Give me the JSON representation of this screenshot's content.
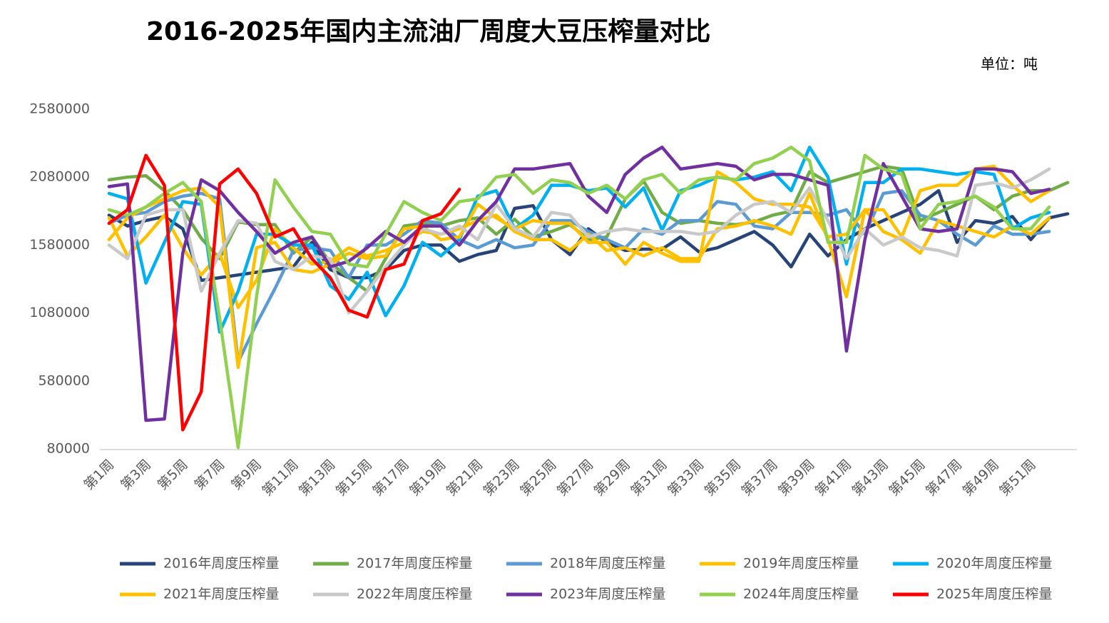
{
  "chart_data": {
    "type": "line",
    "title": "2016-2025年国内主流油厂周度大豆压榨量对比",
    "unit_note": "单位：吨",
    "categories": [
      "第1周",
      null,
      "第3周",
      null,
      "第5周",
      null,
      "第7周",
      null,
      "第9周",
      null,
      "第11周",
      null,
      "第13周",
      null,
      "第15周",
      null,
      "第17周",
      null,
      "第19周",
      null,
      "第21周",
      null,
      "第23周",
      null,
      "第25周",
      null,
      "第27周",
      null,
      "第29周",
      null,
      "第31周",
      null,
      "第33周",
      null,
      "第35周",
      null,
      "第37周",
      null,
      "第39周",
      null,
      "第41周",
      null,
      "第43周",
      null,
      "第45周",
      null,
      "第47周",
      null,
      "第49周",
      null,
      "第51周",
      null,
      null
    ],
    "ylim": [
      80000,
      2580000
    ],
    "yticks": [
      80000,
      580000,
      1080000,
      1580000,
      2080000,
      2580000
    ],
    "grid": false,
    "legend": "bottom",
    "series": [
      {
        "name": "2016年周度压榨量",
        "color": "#264478",
        "values": [
          1800000,
          1720000,
          1760000,
          1790000,
          1700000,
          1320000,
          1340000,
          1360000,
          1380000,
          1400000,
          1420000,
          1600000,
          1400000,
          1340000,
          1340000,
          1400000,
          1540000,
          1580000,
          1580000,
          1460000,
          1510000,
          1540000,
          1850000,
          1870000,
          1620000,
          1510000,
          1700000,
          1600000,
          1540000,
          1550000,
          1550000,
          1640000,
          1530000,
          1560000,
          1620000,
          1680000,
          1580000,
          1420000,
          1660000,
          1500000,
          1620000,
          1700000,
          1760000,
          1820000,
          1880000,
          1980000,
          1600000,
          1760000,
          1740000,
          1790000,
          1620000,
          1780000,
          1810000
        ]
      },
      {
        "name": "2017年周度压榨量",
        "color": "#70ad47",
        "values": [
          2060000,
          2080000,
          2090000,
          1980000,
          1840000,
          1630000,
          1480000,
          1750000,
          1730000,
          1730000,
          1520000,
          1640000,
          1450000,
          1340000,
          1240000,
          1480000,
          1720000,
          1740000,
          1720000,
          1760000,
          1780000,
          1660000,
          1770000,
          1640000,
          1680000,
          1730000,
          1620000,
          1640000,
          1920000,
          2050000,
          1820000,
          1740000,
          1760000,
          1740000,
          1730000,
          1750000,
          1800000,
          1830000,
          2120000,
          2040000,
          2080000,
          2120000,
          2160000,
          2140000,
          1760000,
          1820000,
          1880000,
          1940000,
          1840000,
          1940000,
          1980000,
          1980000,
          2040000
        ]
      },
      {
        "name": "2018年周度压榨量",
        "color": "#5b9bd5",
        "values": [
          1740000,
          1800000,
          1820000,
          1900000,
          1940000,
          1960000,
          1920000,
          720000,
          1000000,
          1260000,
          1540000,
          1560000,
          1540000,
          1340000,
          1580000,
          1580000,
          1660000,
          1760000,
          1740000,
          1620000,
          1560000,
          1620000,
          1560000,
          1580000,
          1760000,
          1760000,
          1680000,
          1620000,
          1560000,
          1700000,
          1660000,
          1760000,
          1760000,
          1900000,
          1880000,
          1720000,
          1700000,
          1820000,
          1820000,
          1800000,
          1840000,
          1660000,
          1960000,
          1980000,
          1800000,
          1760000,
          1660000,
          1580000,
          1720000,
          1660000,
          1660000,
          1680000,
          null
        ]
      },
      {
        "name": "2019年周度压榨量",
        "color": "#ffc000",
        "values": [
          1780000,
          1500000,
          1640000,
          1800000,
          1560000,
          1360000,
          1520000,
          1120000,
          1320000,
          1700000,
          1560000,
          1440000,
          1460000,
          1560000,
          1500000,
          1540000,
          1600000,
          1680000,
          1660000,
          1700000,
          1760000,
          1800000,
          1680000,
          1620000,
          1620000,
          1540000,
          1660000,
          1540000,
          1560000,
          1500000,
          1560000,
          1480000,
          1480000,
          1700000,
          1720000,
          1760000,
          1720000,
          1660000,
          1960000,
          1620000,
          1200000,
          1840000,
          1680000,
          1620000,
          1520000,
          1760000,
          1720000,
          1680000,
          1640000,
          1720000,
          1660000,
          1780000,
          null
        ]
      },
      {
        "name": "2020年周度压榨量",
        "color": "#00b0f0",
        "values": [
          1960000,
          1920000,
          1300000,
          1600000,
          1900000,
          1880000,
          940000,
          1240000,
          1660000,
          1660000,
          1580000,
          1580000,
          1280000,
          1180000,
          1380000,
          1060000,
          1280000,
          1600000,
          1500000,
          1620000,
          1940000,
          1980000,
          1700000,
          1800000,
          2020000,
          2020000,
          1980000,
          2000000,
          1860000,
          2000000,
          1690000,
          1980000,
          2020000,
          2080000,
          2060000,
          2080000,
          2120000,
          1980000,
          2300000,
          2080000,
          1440000,
          2040000,
          2040000,
          2140000,
          2140000,
          2120000,
          2100000,
          2120000,
          2100000,
          1700000,
          1780000,
          1820000,
          null
        ]
      },
      {
        "name": "2021年周度压榨量",
        "color": "#ffc000",
        "values": [
          1620000,
          1780000,
          1860000,
          1920000,
          1980000,
          2000000,
          1860000,
          680000,
          1560000,
          1600000,
          1400000,
          1380000,
          1440000,
          1520000,
          1480000,
          1500000,
          1700000,
          1720000,
          1620000,
          1640000,
          1880000,
          1780000,
          1700000,
          1760000,
          1740000,
          1740000,
          1600000,
          1600000,
          1440000,
          1600000,
          1520000,
          1460000,
          1460000,
          2120000,
          2040000,
          1920000,
          1880000,
          1880000,
          1860000,
          1640000,
          1660000,
          1840000,
          1840000,
          1640000,
          1980000,
          2020000,
          2020000,
          2140000,
          2160000,
          2020000,
          1900000,
          1980000,
          null
        ]
      },
      {
        "name": "2022年周度压榨量",
        "color": "#c9c9c9",
        "values": [
          1580000,
          1480000,
          1800000,
          1840000,
          1840000,
          1240000,
          1520000,
          1760000,
          1740000,
          1460000,
          1400000,
          1500000,
          1480000,
          1080000,
          1240000,
          1420000,
          1580000,
          1700000,
          1660000,
          1720000,
          1620000,
          1880000,
          1700000,
          1640000,
          1820000,
          1800000,
          1640000,
          1680000,
          1700000,
          1680000,
          1680000,
          1680000,
          1660000,
          1680000,
          1800000,
          1880000,
          1900000,
          1820000,
          2000000,
          1760000,
          1480000,
          1700000,
          1580000,
          1640000,
          1560000,
          1540000,
          1500000,
          2020000,
          2040000,
          2000000,
          2060000,
          2140000,
          null
        ]
      },
      {
        "name": "2023年周度压榨量",
        "color": "#7030a0",
        "values": [
          2010000,
          2030000,
          290000,
          300000,
          1520000,
          2060000,
          1980000,
          1820000,
          1680000,
          1520000,
          1600000,
          1640000,
          1420000,
          1460000,
          1560000,
          1680000,
          1600000,
          1720000,
          1720000,
          1580000,
          1760000,
          1900000,
          2140000,
          2140000,
          2160000,
          2180000,
          1940000,
          1820000,
          2100000,
          2220000,
          2300000,
          2140000,
          2160000,
          2180000,
          2160000,
          2060000,
          2100000,
          2100000,
          2060000,
          2020000,
          800000,
          1620000,
          2180000,
          1940000,
          1700000,
          1680000,
          1700000,
          2140000,
          2140000,
          2120000,
          1960000,
          1990000,
          null
        ]
      },
      {
        "name": "2024年周度压榨量",
        "color": "#92d050",
        "values": [
          1840000,
          1800000,
          1860000,
          1960000,
          2040000,
          1900000,
          1040000,
          90000,
          1200000,
          2060000,
          1860000,
          1680000,
          1660000,
          1440000,
          1420000,
          1660000,
          1900000,
          1820000,
          1760000,
          1900000,
          1920000,
          2080000,
          2100000,
          1960000,
          2060000,
          2040000,
          1960000,
          2020000,
          1920000,
          2060000,
          2100000,
          1960000,
          2060000,
          2080000,
          2060000,
          2180000,
          2220000,
          2300000,
          2200000,
          1600000,
          1600000,
          2240000,
          2140000,
          2100000,
          1700000,
          1880000,
          1900000,
          1940000,
          1860000,
          1700000,
          1700000,
          1860000,
          null
        ]
      },
      {
        "name": "2025年周度压榨量",
        "color": "#ff0000",
        "values": [
          1740000,
          1840000,
          2240000,
          2020000,
          220000,
          500000,
          2030000,
          2140000,
          1960000,
          1640000,
          1700000,
          1480000,
          1340000,
          1100000,
          1050000,
          1400000,
          1440000,
          1760000,
          1810000,
          1990000,
          null,
          null,
          null,
          null,
          null,
          null,
          null,
          null,
          null,
          null,
          null,
          null,
          null,
          null,
          null,
          null,
          null,
          null,
          null,
          null,
          null,
          null,
          null,
          null,
          null,
          null,
          null,
          null,
          null,
          null,
          null,
          null,
          null
        ]
      }
    ]
  }
}
